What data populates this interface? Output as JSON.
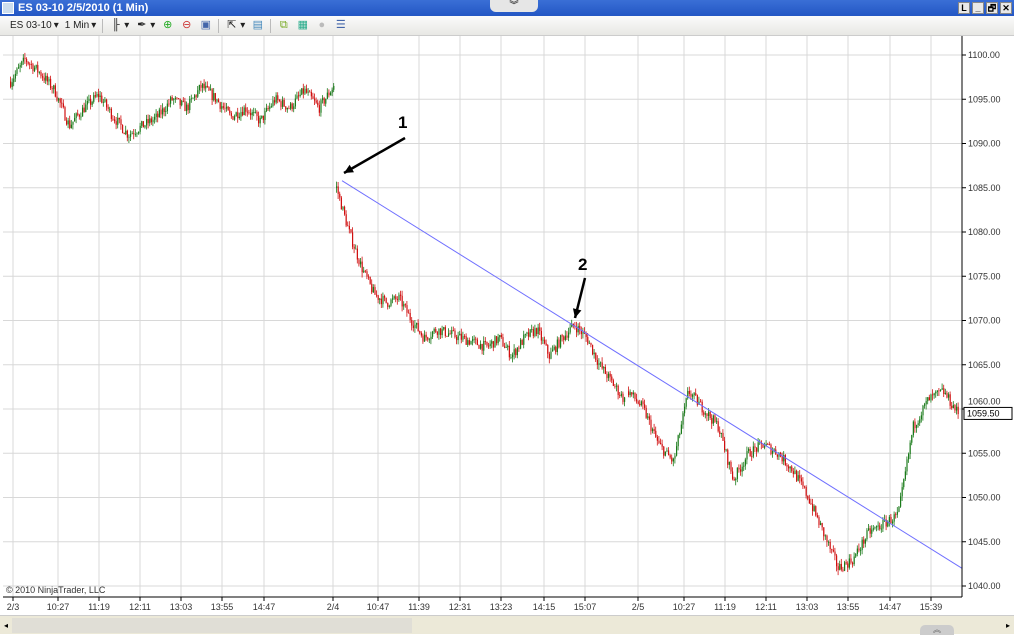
{
  "window": {
    "title": "ES 03-10  2/5/2010 (1 Min)",
    "collapse_glyph": "︾",
    "buttons": [
      "L",
      "_",
      "🗗",
      "✕"
    ]
  },
  "toolbar": {
    "instrument": "ES 03-10",
    "interval": "1 Min",
    "icons": [
      "bar-type-icon",
      "draw-pen-icon",
      "zoom-in-icon",
      "zoom-out-icon",
      "properties-icon",
      "cursor-icon",
      "data-box-icon",
      "strategies-icon",
      "indicators-icon",
      "disabled-icon",
      "chart-trader-icon"
    ]
  },
  "copyright": "© 2010 NinjaTrader, LLC",
  "colors": {
    "up": "#1a7a1a",
    "down": "#d01010",
    "trendline": "#6f6fff",
    "grid": "#d8d8d8",
    "title_bar": "#2f63cf"
  },
  "chart_data": {
    "type": "candlestick",
    "instrument": "ES 03-10",
    "interval": "1 Min",
    "ylim": [
      1038,
      1102
    ],
    "yticks": [
      "1100.00",
      "1095.00",
      "1090.00",
      "1085.00",
      "1080.00",
      "1075.00",
      "1070.00",
      "1065.00",
      "1060.00",
      "1055.00",
      "1050.00",
      "1045.00",
      "1040.00"
    ],
    "xticks": [
      "2/3",
      "10:27",
      "11:19",
      "12:11",
      "13:03",
      "13:55",
      "14:47",
      "2/4",
      "10:47",
      "11:39",
      "12:31",
      "13:23",
      "14:15",
      "15:07",
      "2/5",
      "10:27",
      "11:19",
      "12:11",
      "13:03",
      "13:55",
      "14:47",
      "15:39"
    ],
    "last_price": "1059.50",
    "sessions": [
      {
        "date": "2/3",
        "path": [
          1097,
          1099.5,
          1098,
          1096,
          1092,
          1094,
          1095.5,
          1093,
          1091,
          1092,
          1093,
          1095,
          1094,
          1096.5,
          1095,
          1093,
          1094,
          1092.5,
          1095,
          1094,
          1096,
          1094,
          1096.5
        ]
      },
      {
        "date": "2/4",
        "path": [
          1085,
          1080,
          1076,
          1073,
          1072,
          1072.5,
          1070,
          1068,
          1069,
          1068.5,
          1068,
          1067.5,
          1067,
          1068,
          1066,
          1068,
          1069,
          1066,
          1068,
          1069.5,
          1068,
          1065,
          1063,
          1061
        ]
      },
      {
        "date": "2/5",
        "path": [
          1062,
          1060,
          1056,
          1054,
          1062,
          1060,
          1058,
          1052,
          1055,
          1056,
          1055,
          1053,
          1050,
          1046,
          1042,
          1043,
          1046,
          1047,
          1048,
          1058,
          1061,
          1062,
          1059.5
        ]
      }
    ],
    "trendline": {
      "from": 1085.8,
      "to": 1042
    },
    "annotations": [
      {
        "label": "1",
        "points_to": "2/4 open high"
      },
      {
        "label": "2",
        "points_to": "trendline touch near 15:07"
      }
    ],
    "grid": true
  }
}
